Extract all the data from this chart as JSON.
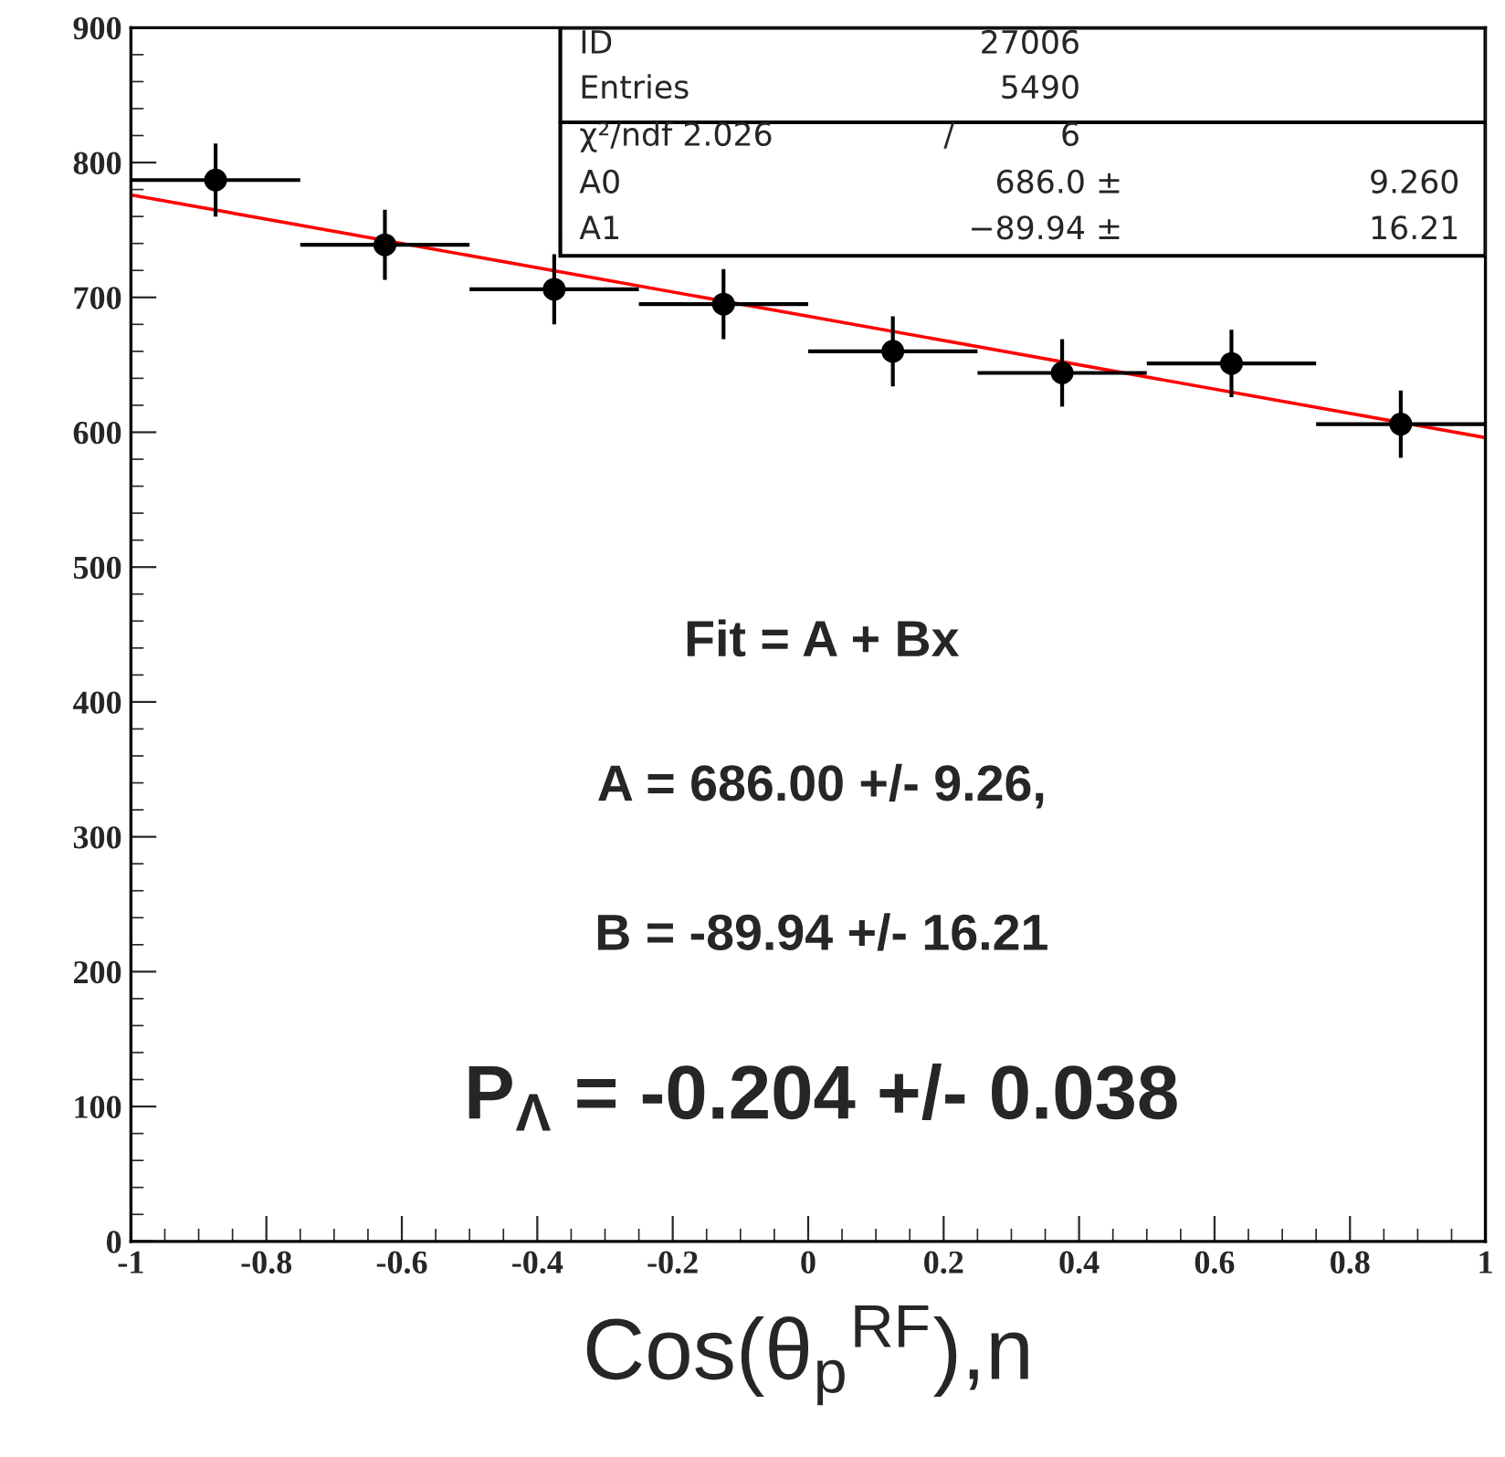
{
  "chart_data": {
    "type": "scatter",
    "xlabel": "Cos(θ$_{p}$$^{RF}$),n",
    "x": [
      -0.875,
      -0.625,
      -0.375,
      -0.125,
      0.125,
      0.375,
      0.625,
      0.875
    ],
    "series": [
      {
        "color": "#000000",
        "marker": "circle",
        "values": [
          787,
          739,
          706,
          695,
          660,
          644,
          651,
          606
        ],
        "errors": [
          27,
          26,
          26,
          26,
          26,
          25,
          25,
          25
        ],
        "xerrors": [
          0.125,
          0.125,
          0.125,
          0.125,
          0.125,
          0.125,
          0.125,
          0.125
        ]
      },
      {
        "type": "line",
        "color": "#ff0000",
        "x": [
          -1,
          1
        ],
        "values": [
          776,
          596
        ]
      }
    ],
    "xlim": [
      -1,
      1
    ],
    "xticks": [
      -1,
      -0.8,
      -0.6,
      -0.4,
      -0.2,
      0,
      0.2,
      0.4,
      0.6,
      0.8,
      1
    ],
    "ylim": [
      0,
      900
    ],
    "yticks": [
      0,
      100,
      200,
      300,
      400,
      500,
      600,
      700,
      800,
      900
    ],
    "grid": false,
    "annotations": [
      "ID",
      "27006",
      "Entries",
      "5490",
      "χ²/ndf 2.026",
      "/",
      "6",
      "A0",
      "686.0 ±",
      "9.260",
      "A1",
      "−89.94 ±",
      "16.21",
      "Fit = A + Bx",
      "A = 686.00 +/- 9.26,",
      "B = -89.94 +/- 16.21",
      "P$_{Λ}$ = -0.204 +/- 0.038"
    ]
  }
}
